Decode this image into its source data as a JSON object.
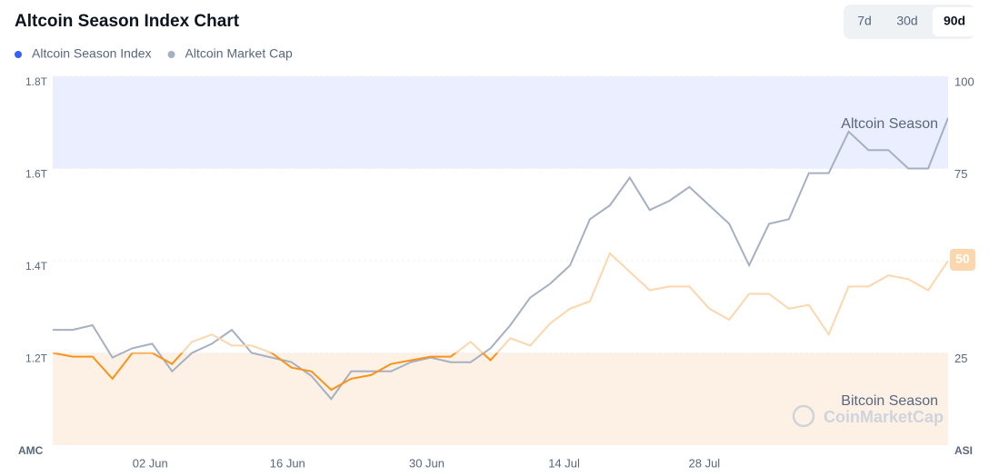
{
  "chart_data": {
    "type": "line",
    "title": "Altcoin Season Index Chart",
    "buttons": [
      {
        "label": "7d",
        "active": false
      },
      {
        "label": "30d",
        "active": false
      },
      {
        "label": "90d",
        "active": true
      }
    ],
    "y_label": "AMC",
    "y2_label": "ASI",
    "watermark": "CoinMarketCap",
    "x": [
      0,
      2,
      4,
      6,
      8,
      10,
      12,
      14,
      16,
      18,
      20,
      22,
      24,
      26,
      28,
      30,
      32,
      34,
      36,
      38,
      40,
      42,
      44,
      46,
      48,
      50,
      52,
      54,
      56,
      58,
      60,
      62,
      64,
      66,
      68,
      70,
      72,
      74,
      76,
      78,
      80,
      82,
      84,
      86,
      88,
      90
    ],
    "xlim": [
      0,
      90
    ],
    "xticks": [
      {
        "value": 9.8,
        "label": "02 Jun"
      },
      {
        "value": 23.6,
        "label": "16 Jun"
      },
      {
        "value": 37.6,
        "label": "30 Jun"
      },
      {
        "value": 51.4,
        "label": "14 Jul"
      },
      {
        "value": 65.5,
        "label": "28 Jul"
      }
    ],
    "ylim": [
      1.0,
      1.8
    ],
    "yticks": [
      {
        "value": 1.2,
        "label": "1.2T"
      },
      {
        "value": 1.4,
        "label": "1.4T"
      },
      {
        "value": 1.6,
        "label": "1.6T"
      },
      {
        "value": 1.8,
        "label": "1.8T"
      }
    ],
    "y2lim": [
      0,
      100
    ],
    "y2ticks": [
      25,
      50,
      75,
      100
    ],
    "grid": true,
    "zones": [
      {
        "label": "Bitcoin Season",
        "from": 0,
        "to": 25,
        "fill": "#fdf1e6",
        "line_color": "#f7931a"
      },
      {
        "from": 25,
        "to": 75,
        "line_color": "#fcd6ad"
      },
      {
        "label": "Altcoin Season",
        "from": 75,
        "to": 100,
        "fill": "#eaeefe",
        "line_color": "#aab9f5"
      }
    ],
    "series": [
      {
        "name": "Altcoin Market Cap",
        "color": "#a6b0c3",
        "values": [
          1.25,
          1.25,
          1.26,
          1.19,
          1.21,
          1.22,
          1.16,
          1.2,
          1.22,
          1.25,
          1.2,
          1.19,
          1.18,
          1.15,
          1.1,
          1.16,
          1.16,
          1.16,
          1.18,
          1.19,
          1.18,
          1.18,
          1.21,
          1.26,
          1.32,
          1.35,
          1.39,
          1.49,
          1.52,
          1.58,
          1.51,
          1.53,
          1.56,
          1.52,
          1.48,
          1.39,
          1.48,
          1.49,
          1.59,
          1.59,
          1.68,
          1.64,
          1.64,
          1.6,
          1.6,
          1.71
        ]
      },
      {
        "name": "Altcoin Season Index",
        "color": "#3861fb",
        "axis": "y2",
        "values": [
          25,
          24,
          24,
          18,
          25,
          25,
          22,
          28,
          30,
          27,
          27,
          25,
          21,
          20,
          15,
          18,
          19,
          22,
          23,
          24,
          24,
          28,
          23,
          29,
          27,
          33,
          37,
          39,
          52,
          47,
          42,
          43,
          43,
          37,
          34,
          41,
          41,
          37,
          38,
          30,
          43,
          43,
          46,
          45,
          42,
          50
        ]
      }
    ]
  }
}
